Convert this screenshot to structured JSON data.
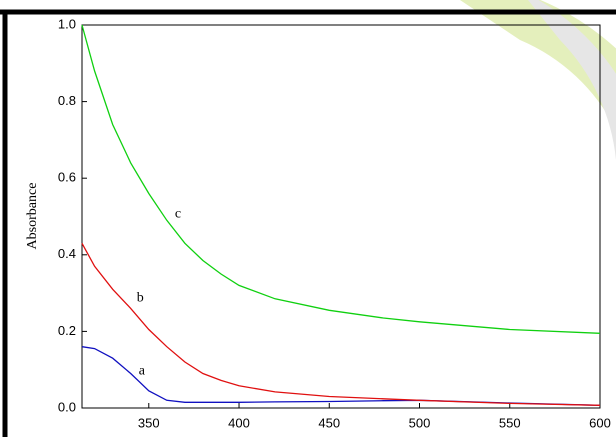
{
  "chart_data": {
    "type": "line",
    "y_label": "Absorbance",
    "x": [
      313,
      320,
      330,
      340,
      350,
      360,
      370,
      380,
      390,
      400,
      420,
      450,
      480,
      500,
      550,
      600
    ],
    "series": [
      {
        "name": "a",
        "color": "#1010c0",
        "values": [
          0.16,
          0.155,
          0.13,
          0.09,
          0.045,
          0.02,
          0.015,
          0.015,
          0.015,
          0.015,
          0.016,
          0.017,
          0.019,
          0.02,
          0.013,
          0.007
        ]
      },
      {
        "name": "b",
        "color": "#e01010",
        "values": [
          0.43,
          0.37,
          0.31,
          0.26,
          0.205,
          0.16,
          0.12,
          0.09,
          0.072,
          0.058,
          0.042,
          0.03,
          0.024,
          0.02,
          0.012,
          0.007
        ]
      },
      {
        "name": "c",
        "color": "#10d010",
        "values": [
          1.0,
          0.88,
          0.74,
          0.64,
          0.56,
          0.49,
          0.43,
          0.385,
          0.35,
          0.32,
          0.285,
          0.255,
          0.235,
          0.225,
          0.205,
          0.195
        ]
      }
    ],
    "xlim": [
      313,
      600
    ],
    "ylim": [
      0,
      1
    ],
    "xticks": [
      350,
      400,
      450,
      500,
      550,
      600
    ],
    "yticks": [
      {
        "value": 0,
        "label": "0.0"
      },
      0.2,
      0.4,
      0.6,
      0.8,
      {
        "value": 1,
        "label": "1.0"
      }
    ]
  }
}
